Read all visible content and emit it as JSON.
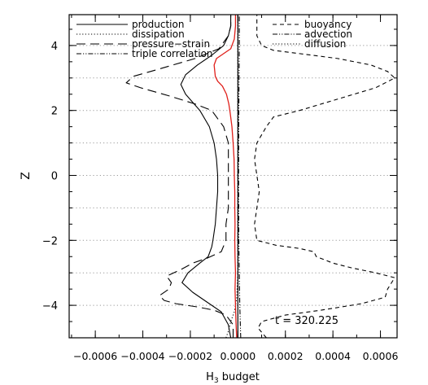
{
  "chart_data": {
    "type": "line",
    "xlabel": "H",
    "xlabel_sub": "3",
    "xlabel_rest": " budget",
    "ylabel": "Z",
    "xlim": [
      -0.00071,
      0.00067
    ],
    "ylim": [
      -5.0,
      4.95
    ],
    "xticks": [
      -0.0006,
      -0.0004,
      -0.0002,
      0.0,
      0.0002,
      0.0004,
      0.0006
    ],
    "xtick_labels": [
      "−0.0006",
      "−0.0004",
      "−0.0002",
      "0.0000",
      "0.0002",
      "0.0004",
      "0.0006"
    ],
    "yticks": [
      -4,
      -2,
      0,
      2,
      4
    ],
    "ytick_labels": [
      "−4",
      "−2",
      "0",
      "2",
      "4"
    ],
    "grid_y": [
      -4,
      -3,
      -2,
      -1,
      0,
      1,
      2,
      3,
      4
    ],
    "grid": "dotted horizontal",
    "annotation": "t = 320.225",
    "legend_left": [
      "production",
      "dissipation",
      "pressure−strain",
      "triple correlation"
    ],
    "legend_right": [
      "buoyancy",
      "advection",
      "diffusion"
    ],
    "colors": {
      "axis": "#000000",
      "grid": "#9a9a9a",
      "red_curve": "#e0201b"
    },
    "series": [
      {
        "name": "production",
        "style": "solid",
        "color": "#000000",
        "points": [
          [
            -3e-05,
            -5.0
          ],
          [
            -4e-05,
            -4.6
          ],
          [
            -7e-05,
            -4.2
          ],
          [
            -0.00013,
            -3.9
          ],
          [
            -0.00019,
            -3.6
          ],
          [
            -0.000235,
            -3.3
          ],
          [
            -0.00021,
            -3.0
          ],
          [
            -0.00016,
            -2.7
          ],
          [
            -0.000125,
            -2.5
          ],
          [
            -0.00011,
            -2.2
          ],
          [
            -0.000105,
            -2.0
          ],
          [
            -9.5e-05,
            -1.5
          ],
          [
            -9e-05,
            -1.0
          ],
          [
            -8.5e-05,
            -0.5
          ],
          [
            -8.5e-05,
            0.0
          ],
          [
            -9e-05,
            0.5
          ],
          [
            -0.0001,
            1.0
          ],
          [
            -0.00012,
            1.5
          ],
          [
            -0.00016,
            2.0
          ],
          [
            -0.00022,
            2.5
          ],
          [
            -0.00024,
            2.8
          ],
          [
            -0.00022,
            3.1
          ],
          [
            -0.00017,
            3.4
          ],
          [
            -0.00011,
            3.7
          ],
          [
            -6e-05,
            4.0
          ],
          [
            -4e-05,
            4.3
          ],
          [
            -3e-05,
            4.6
          ],
          [
            -3e-05,
            4.95
          ]
        ]
      },
      {
        "name": "dissipation",
        "style": "dotted",
        "color": "#000000",
        "points": [
          [
            -5e-05,
            -5.0
          ],
          [
            -4e-05,
            -4.8
          ],
          [
            -3e-05,
            -4.5
          ],
          [
            -1.5e-05,
            -4.2
          ],
          [
            -5e-06,
            -3.8
          ],
          [
            0.0,
            -3.0
          ],
          [
            0.0,
            3.0
          ],
          [
            0.0,
            4.95
          ]
        ]
      },
      {
        "name": "pressure−strain",
        "style": "dashed",
        "color": "#000000",
        "points": [
          [
            -2e-05,
            -5.0
          ],
          [
            -2e-05,
            -4.6
          ],
          [
            -5e-05,
            -4.3
          ],
          [
            -0.0001,
            -4.15
          ],
          [
            -0.00017,
            -4.05
          ],
          [
            -0.00026,
            -3.95
          ],
          [
            -0.00031,
            -3.85
          ],
          [
            -0.00033,
            -3.7
          ],
          [
            -0.00029,
            -3.5
          ],
          [
            -0.00028,
            -3.3
          ],
          [
            -0.0003,
            -3.1
          ],
          [
            -0.00024,
            -2.9
          ],
          [
            -0.00019,
            -2.7
          ],
          [
            -0.00013,
            -2.55
          ],
          [
            -7e-05,
            -2.35
          ],
          [
            -5e-05,
            -2.0
          ],
          [
            -5e-05,
            -1.5
          ],
          [
            -4e-05,
            -1.0
          ],
          [
            -4e-05,
            0.0
          ],
          [
            -4e-05,
            1.0
          ],
          [
            -6e-05,
            1.5
          ],
          [
            -0.00011,
            2.0
          ],
          [
            -0.00018,
            2.2
          ],
          [
            -0.00029,
            2.45
          ],
          [
            -0.00041,
            2.7
          ],
          [
            -0.00047,
            2.85
          ],
          [
            -0.00044,
            3.05
          ],
          [
            -0.00032,
            3.3
          ],
          [
            -0.00018,
            3.6
          ],
          [
            -8e-05,
            3.9
          ],
          [
            -4e-05,
            4.3
          ],
          [
            -3e-05,
            4.6
          ],
          [
            -3e-05,
            4.95
          ]
        ]
      },
      {
        "name": "triple correlation",
        "style": "dashdotdot",
        "color": "#000000",
        "points": [
          [
            1.2e-05,
            -5.0
          ],
          [
            1e-05,
            -4.5
          ],
          [
            8e-06,
            -4.0
          ],
          [
            6e-06,
            -3.0
          ],
          [
            4e-06,
            -2.0
          ],
          [
            3e-06,
            0.0
          ],
          [
            4e-06,
            2.0
          ],
          [
            5e-06,
            3.0
          ],
          [
            6e-06,
            4.0
          ],
          [
            6e-06,
            4.95
          ]
        ]
      },
      {
        "name": "buoyancy",
        "style": "dashed-short",
        "color": "#000000",
        "points": [
          [
            0.00012,
            -5.0
          ],
          [
            8.5e-05,
            -4.7
          ],
          [
            0.0001,
            -4.5
          ],
          [
            0.0002,
            -4.3
          ],
          [
            0.00035,
            -4.15
          ],
          [
            0.00052,
            -3.95
          ],
          [
            0.00062,
            -3.75
          ],
          [
            0.00063,
            -3.5
          ],
          [
            0.00066,
            -3.15
          ],
          [
            0.00058,
            -3.0
          ],
          [
            0.00048,
            -2.85
          ],
          [
            0.0004,
            -2.7
          ],
          [
            0.00033,
            -2.5
          ],
          [
            0.00032,
            -2.35
          ],
          [
            0.00026,
            -2.25
          ],
          [
            0.00016,
            -2.15
          ],
          [
            8e-05,
            -2.0
          ],
          [
            7e-05,
            -1.5
          ],
          [
            8e-05,
            -1.0
          ],
          [
            9e-05,
            -0.5
          ],
          [
            8e-05,
            0.0
          ],
          [
            7e-05,
            0.5
          ],
          [
            8e-05,
            1.0
          ],
          [
            0.00012,
            1.5
          ],
          [
            0.00015,
            1.8
          ],
          [
            0.00026,
            2.0
          ],
          [
            0.00042,
            2.35
          ],
          [
            0.00058,
            2.7
          ],
          [
            0.00066,
            3.0
          ],
          [
            0.00063,
            3.2
          ],
          [
            0.00056,
            3.4
          ],
          [
            0.00042,
            3.6
          ],
          [
            0.00026,
            3.75
          ],
          [
            0.00015,
            3.85
          ],
          [
            0.0001,
            4.0
          ],
          [
            8e-05,
            4.3
          ],
          [
            8e-05,
            4.6
          ],
          [
            8e-05,
            4.95
          ]
        ]
      },
      {
        "name": "red",
        "style": "solid",
        "color": "#e0201b",
        "points": [
          [
            -5e-06,
            -5.0
          ],
          [
            -8e-06,
            -4.5
          ],
          [
            -1e-05,
            -4.0
          ],
          [
            -1.2e-05,
            -3.5
          ],
          [
            -1e-05,
            -3.0
          ],
          [
            -1.2e-05,
            -2.5
          ],
          [
            -1.3e-05,
            -2.0
          ],
          [
            -1.2e-05,
            -1.5
          ],
          [
            -1.3e-05,
            -1.0
          ],
          [
            -1.3e-05,
            -0.5
          ],
          [
            -1.5e-05,
            0.0
          ],
          [
            -1.6e-05,
            0.5
          ],
          [
            -2e-05,
            1.0
          ],
          [
            -2.5e-05,
            1.5
          ],
          [
            -3.2e-05,
            1.9
          ],
          [
            -3.8e-05,
            2.2
          ],
          [
            -4.8e-05,
            2.5
          ],
          [
            -6.5e-05,
            2.75
          ],
          [
            -8.5e-05,
            2.9
          ],
          [
            -9.5e-05,
            3.05
          ],
          [
            -0.0001,
            3.4
          ],
          [
            -9e-05,
            3.6
          ],
          [
            -6e-05,
            3.75
          ],
          [
            -3e-05,
            3.9
          ],
          [
            -1.5e-05,
            4.2
          ],
          [
            -1e-05,
            4.6
          ],
          [
            -1e-05,
            4.95
          ]
        ]
      }
    ]
  }
}
